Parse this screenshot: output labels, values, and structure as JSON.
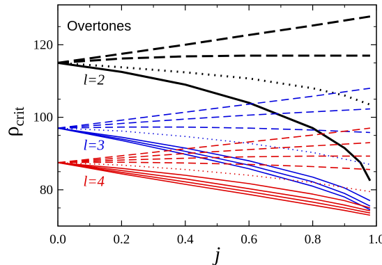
{
  "chart_data": {
    "type": "line",
    "title": "",
    "legend_title": "Overtones",
    "xlabel": "j",
    "ylabel_main": "ρ",
    "ylabel_sub": "crit",
    "xlim": [
      0.0,
      1.0
    ],
    "ylim": [
      70,
      131
    ],
    "xticks": [
      "0.0",
      "0.2",
      "0.4",
      "0.6",
      "0.8",
      "1.0"
    ],
    "yticks": [
      "80",
      "100",
      "120"
    ],
    "annotations": [
      {
        "text": "l=2",
        "color": "#000000",
        "x": 0.08,
        "y": 109
      },
      {
        "text": "l=3",
        "color": "#0000dd",
        "x": 0.08,
        "y": 91
      },
      {
        "text": "l=4",
        "color": "#dd0000",
        "x": 0.08,
        "y": 81
      }
    ],
    "series": [
      {
        "group": "l=2",
        "style": "dashed-thick",
        "color": "#000000",
        "x": [
          0,
          0.2,
          0.4,
          0.6,
          0.8,
          0.98
        ],
        "y": [
          115,
          117.5,
          120,
          122.7,
          125.3,
          127.8
        ]
      },
      {
        "group": "l=2",
        "style": "dashed-thick",
        "color": "#000000",
        "x": [
          0,
          0.2,
          0.4,
          0.6,
          0.8,
          0.98
        ],
        "y": [
          115,
          116.2,
          116.8,
          117,
          117,
          117
        ]
      },
      {
        "group": "l=2",
        "style": "dotted-thick",
        "color": "#000000",
        "x": [
          0,
          0.2,
          0.4,
          0.6,
          0.8,
          0.9,
          0.98
        ],
        "y": [
          115,
          113.8,
          112.4,
          110.7,
          108,
          106,
          103.5
        ]
      },
      {
        "group": "l=2",
        "style": "solid-thick",
        "color": "#000000",
        "x": [
          0,
          0.2,
          0.4,
          0.6,
          0.8,
          0.9,
          0.95,
          0.98
        ],
        "y": [
          115,
          112.5,
          109,
          104,
          97,
          91.5,
          87.5,
          82.5
        ]
      },
      {
        "group": "l=3",
        "style": "dashed",
        "color": "#0000dd",
        "x": [
          0,
          0.2,
          0.4,
          0.6,
          0.8,
          0.98
        ],
        "y": [
          97,
          99.2,
          101.4,
          103.6,
          105.8,
          108
        ]
      },
      {
        "group": "l=3",
        "style": "dashed",
        "color": "#0000dd",
        "x": [
          0,
          0.2,
          0.4,
          0.6,
          0.8,
          0.98
        ],
        "y": [
          97,
          98.3,
          99.5,
          100.6,
          101.5,
          102.3
        ]
      },
      {
        "group": "l=3",
        "style": "dashed",
        "color": "#0000dd",
        "x": [
          0,
          0.2,
          0.4,
          0.6,
          0.8,
          0.98
        ],
        "y": [
          97,
          97.3,
          97.3,
          97,
          96.5,
          95.8
        ]
      },
      {
        "group": "l=3",
        "style": "dotted",
        "color": "#0000dd",
        "x": [
          0,
          0.2,
          0.4,
          0.6,
          0.8,
          0.98
        ],
        "y": [
          97,
          96.2,
          94.7,
          92.8,
          90.3,
          87
        ]
      },
      {
        "group": "l=3",
        "style": "solid",
        "color": "#0000dd",
        "x": [
          0,
          0.2,
          0.4,
          0.6,
          0.8,
          0.9,
          0.98
        ],
        "y": [
          97,
          94.5,
          91.5,
          88,
          83.5,
          80.5,
          77
        ]
      },
      {
        "group": "l=3",
        "style": "solid",
        "color": "#0000dd",
        "x": [
          0,
          0.2,
          0.4,
          0.6,
          0.8,
          0.9,
          0.98
        ],
        "y": [
          97,
          94,
          90.6,
          86.8,
          82.2,
          79,
          75.5
        ]
      },
      {
        "group": "l=3",
        "style": "solid",
        "color": "#0000dd",
        "x": [
          0,
          0.2,
          0.4,
          0.6,
          0.8,
          0.9,
          0.98
        ],
        "y": [
          97,
          93.6,
          89.8,
          85.8,
          81,
          78,
          74.5
        ]
      },
      {
        "group": "l=4",
        "style": "dashed",
        "color": "#dd0000",
        "x": [
          0,
          0.2,
          0.4,
          0.6,
          0.8,
          0.98
        ],
        "y": [
          87.5,
          89.4,
          91.3,
          93.2,
          95.1,
          97
        ]
      },
      {
        "group": "l=4",
        "style": "dashed",
        "color": "#dd0000",
        "x": [
          0,
          0.2,
          0.4,
          0.6,
          0.8,
          0.98
        ],
        "y": [
          87.5,
          88.8,
          90,
          91.1,
          92.1,
          93
        ]
      },
      {
        "group": "l=4",
        "style": "dashed",
        "color": "#dd0000",
        "x": [
          0,
          0.2,
          0.4,
          0.6,
          0.8,
          0.98
        ],
        "y": [
          87.5,
          88.2,
          88.7,
          89.1,
          89.3,
          89.3
        ]
      },
      {
        "group": "l=4",
        "style": "dashed",
        "color": "#dd0000",
        "x": [
          0,
          0.2,
          0.4,
          0.6,
          0.8,
          0.98
        ],
        "y": [
          87.5,
          87.6,
          87.4,
          87,
          86.4,
          85.6
        ]
      },
      {
        "group": "l=4",
        "style": "dotted",
        "color": "#dd0000",
        "x": [
          0,
          0.2,
          0.4,
          0.6,
          0.8,
          0.98
        ],
        "y": [
          87.5,
          86.8,
          85.6,
          84,
          82,
          79.5
        ]
      },
      {
        "group": "l=4",
        "style": "solid",
        "color": "#dd0000",
        "x": [
          0,
          0.2,
          0.4,
          0.6,
          0.8,
          0.9,
          0.98
        ],
        "y": [
          87.5,
          85.9,
          84,
          81.7,
          78.8,
          77,
          75
        ]
      },
      {
        "group": "l=4",
        "style": "solid",
        "color": "#dd0000",
        "x": [
          0,
          0.2,
          0.4,
          0.6,
          0.8,
          0.9,
          0.98
        ],
        "y": [
          87.5,
          85.3,
          83,
          80.3,
          77.5,
          75.8,
          74.2
        ]
      },
      {
        "group": "l=4",
        "style": "solid",
        "color": "#dd0000",
        "x": [
          0,
          0.2,
          0.4,
          0.6,
          0.8,
          0.9,
          0.98
        ],
        "y": [
          87.5,
          84.8,
          82.2,
          79.5,
          76.6,
          75,
          73.6
        ]
      },
      {
        "group": "l=4",
        "style": "solid",
        "color": "#dd0000",
        "x": [
          0,
          0.2,
          0.4,
          0.6,
          0.8,
          0.9,
          0.98
        ],
        "y": [
          87.5,
          84.4,
          81.5,
          78.7,
          75.8,
          74.3,
          73
        ]
      }
    ]
  }
}
